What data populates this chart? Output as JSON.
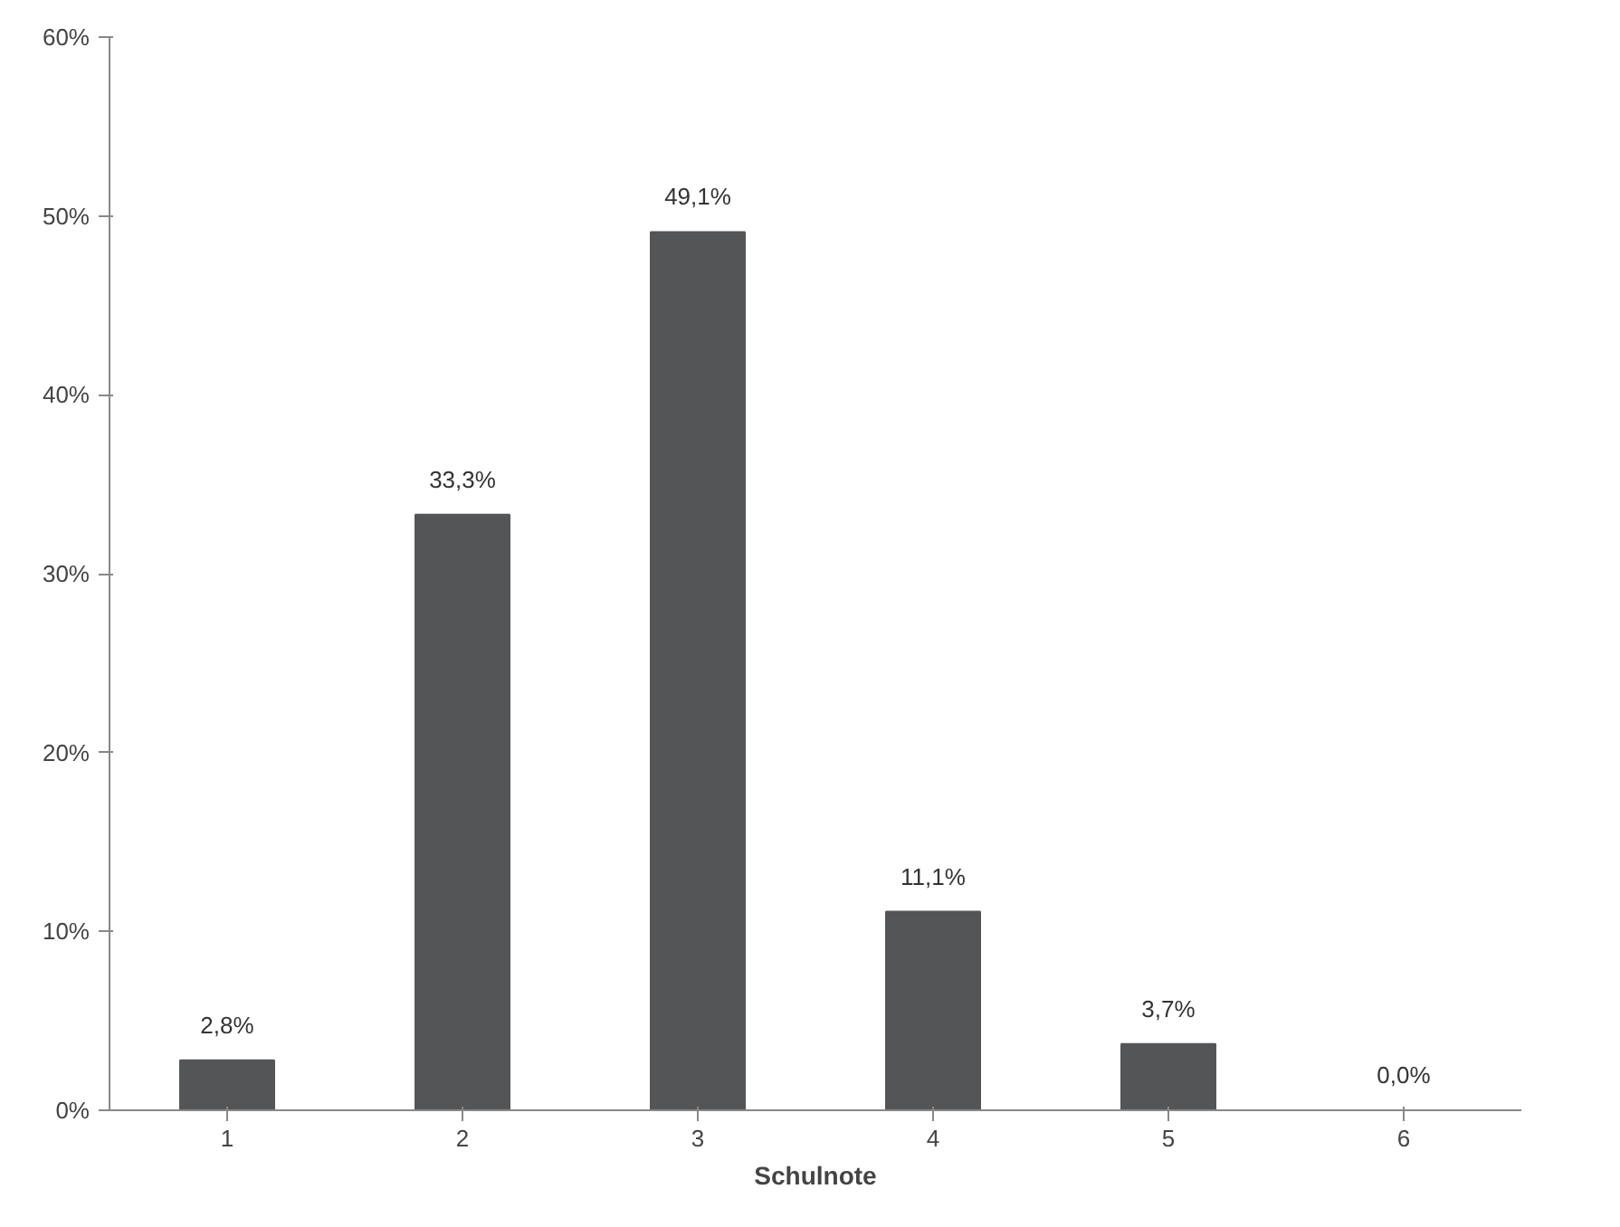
{
  "chart_data": {
    "type": "bar",
    "xlabel": "Schulnote",
    "categories": [
      "1",
      "2",
      "3",
      "4",
      "5",
      "6"
    ],
    "values": [
      2.8,
      33.3,
      49.1,
      11.1,
      3.7,
      0.0
    ],
    "value_labels": [
      "2,8%",
      "33,3%",
      "49,1%",
      "11,1%",
      "3,7%",
      "0,0%"
    ],
    "color": "#545557",
    "ylim": [
      0,
      60
    ],
    "yticks": [
      {
        "value": 0,
        "label": "0%"
      },
      {
        "value": 10,
        "label": "10%"
      },
      {
        "value": 20,
        "label": "20%"
      },
      {
        "value": 30,
        "label": "30%"
      },
      {
        "value": 40,
        "label": "40%"
      },
      {
        "value": 50,
        "label": "50%"
      },
      {
        "value": 60,
        "label": "60%"
      }
    ],
    "grid": false
  }
}
